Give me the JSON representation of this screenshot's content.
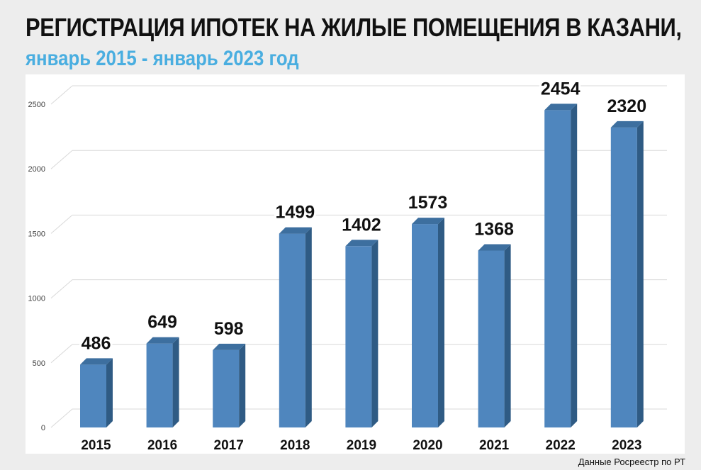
{
  "header": {
    "title": "РЕГИСТРАЦИЯ ИПОТЕК НА ЖИЛЫЕ ПОМЕЩЕНИЯ В КАЗАНИ,",
    "subtitle": "январь 2015 - январь 2023 год"
  },
  "footer": {
    "source": "Данные Росреестр по РТ"
  },
  "colors": {
    "bar_front": "#4f86be",
    "bar_side": "#2f5b84",
    "bar_top": "#3d6f9f",
    "subtitle": "#4aaee0"
  },
  "chart_data": {
    "type": "bar",
    "title": "РЕГИСТРАЦИЯ ИПОТЕК НА ЖИЛЫЕ ПОМЕЩЕНИЯ В КАЗАНИ,",
    "subtitle": "январь 2015 - январь 2023 год",
    "categories": [
      "2015",
      "2016",
      "2017",
      "2018",
      "2019",
      "2020",
      "2021",
      "2022",
      "2023"
    ],
    "values": [
      486,
      649,
      598,
      1499,
      1402,
      1573,
      1368,
      2454,
      2320
    ],
    "data_labels": [
      "486",
      "649",
      "598",
      "1499",
      "1402",
      "1573",
      "1368",
      "2454",
      "2320"
    ],
    "yticks": [
      "0",
      "500",
      "1000",
      "1500",
      "2000",
      "2500"
    ],
    "ylim": [
      0,
      2500
    ],
    "grid": true,
    "legend": "none",
    "style": "3d"
  }
}
